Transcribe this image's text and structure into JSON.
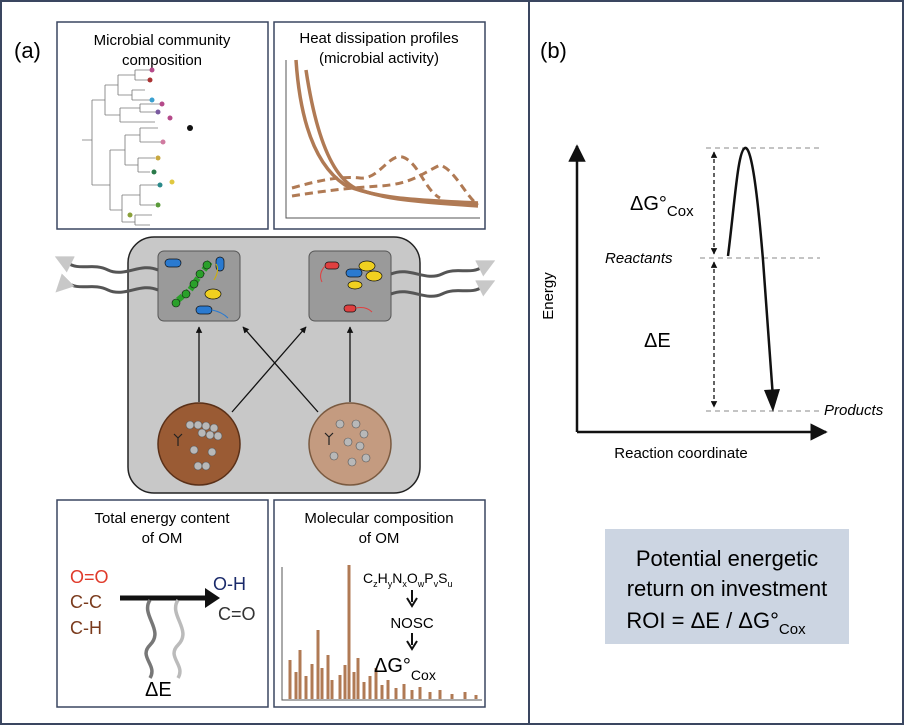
{
  "panel_a": {
    "label": "(a)",
    "community_box": {
      "line1": "Microbial community",
      "line2": "composition"
    },
    "heat_box": {
      "line1": "Heat dissipation profiles",
      "line2": "(microbial activity)"
    },
    "energy_box": {
      "line1": "Total energy content",
      "line2": "of OM",
      "bond_oo": "O=O",
      "bond_cc": "C-C",
      "bond_ch": "C-H",
      "bond_oh": "O-H",
      "bond_co": "C=O",
      "delta_e": "ΔE"
    },
    "molecular_box": {
      "line1": "Molecular composition",
      "line2": "of OM",
      "formula": "CzHyNxOwPvSu",
      "nosc": "NOSC",
      "dg": "ΔG°",
      "dg_sub": "Cox"
    }
  },
  "panel_b": {
    "label": "(b)",
    "y_axis": "Energy",
    "x_axis": "Reaction coordinate",
    "reactants": "Reactants",
    "products": "Products",
    "dg_label": "ΔG°",
    "dg_sub": "Cox",
    "de_label": "ΔE",
    "roi_box": {
      "line1": "Potential energetic",
      "line2": "return on investment",
      "line3": "ROI = ΔE / ΔG°",
      "line3_sub": "Cox"
    }
  },
  "colors": {
    "frame": "#3a4660",
    "soil_dark": "#9a5b34",
    "soil_light": "#c49b80",
    "heat_curve": "#b07a54",
    "roi_bg": "#ccd5e2",
    "oxygen_red": "#e03a2a",
    "carbon_brown": "#7a3a1c",
    "oh_blue": "#1a2a6a"
  }
}
